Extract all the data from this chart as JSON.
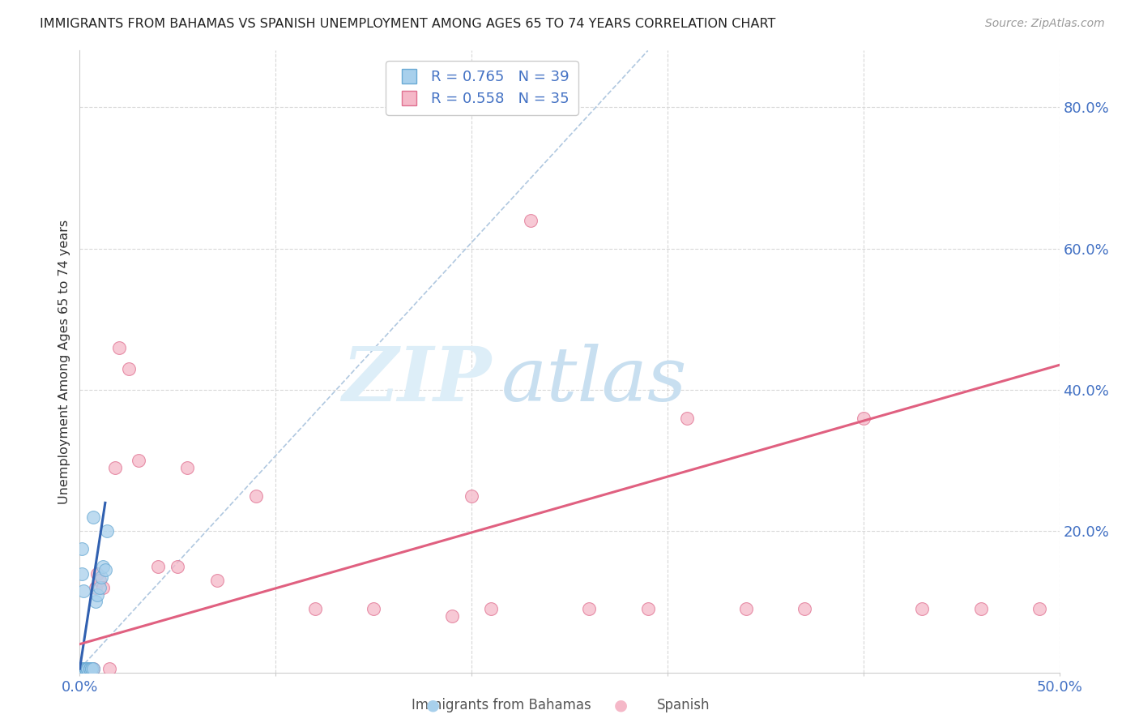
{
  "title": "IMMIGRANTS FROM BAHAMAS VS SPANISH UNEMPLOYMENT AMONG AGES 65 TO 74 YEARS CORRELATION CHART",
  "source": "Source: ZipAtlas.com",
  "ylabel": "Unemployment Among Ages 65 to 74 years",
  "xlim": [
    0,
    0.5
  ],
  "ylim": [
    0,
    0.88
  ],
  "blue_R": 0.765,
  "blue_N": 39,
  "pink_R": 0.558,
  "pink_N": 35,
  "blue_color": "#a8d0ec",
  "blue_edge": "#6aaad4",
  "pink_color": "#f5b8c8",
  "pink_edge": "#e07090",
  "blue_line_color": "#3060b0",
  "pink_line_color": "#e06080",
  "dash_color": "#b0c8e0",
  "watermark_zip": "ZIP",
  "watermark_atlas": "atlas",
  "blue_scatter_x": [
    0.001,
    0.001,
    0.001,
    0.001,
    0.001,
    0.002,
    0.002,
    0.002,
    0.002,
    0.002,
    0.002,
    0.002,
    0.002,
    0.003,
    0.003,
    0.003,
    0.003,
    0.003,
    0.003,
    0.004,
    0.004,
    0.004,
    0.004,
    0.005,
    0.005,
    0.005,
    0.006,
    0.006,
    0.007,
    0.008,
    0.009,
    0.01,
    0.011,
    0.012,
    0.013,
    0.014,
    0.001,
    0.002,
    0.007
  ],
  "blue_scatter_y": [
    0.005,
    0.005,
    0.005,
    0.005,
    0.14,
    0.005,
    0.005,
    0.005,
    0.005,
    0.005,
    0.005,
    0.005,
    0.005,
    0.005,
    0.005,
    0.005,
    0.005,
    0.005,
    0.005,
    0.005,
    0.005,
    0.005,
    0.005,
    0.005,
    0.005,
    0.005,
    0.005,
    0.005,
    0.005,
    0.1,
    0.11,
    0.12,
    0.135,
    0.15,
    0.145,
    0.2,
    0.175,
    0.115,
    0.22
  ],
  "pink_scatter_x": [
    0.002,
    0.003,
    0.004,
    0.005,
    0.006,
    0.007,
    0.008,
    0.009,
    0.01,
    0.012,
    0.015,
    0.018,
    0.02,
    0.025,
    0.03,
    0.04,
    0.055,
    0.07,
    0.09,
    0.12,
    0.15,
    0.19,
    0.2,
    0.21,
    0.23,
    0.26,
    0.29,
    0.31,
    0.34,
    0.37,
    0.4,
    0.43,
    0.46,
    0.49,
    0.05
  ],
  "pink_scatter_y": [
    0.005,
    0.005,
    0.005,
    0.005,
    0.005,
    0.005,
    0.12,
    0.14,
    0.13,
    0.12,
    0.005,
    0.29,
    0.46,
    0.43,
    0.3,
    0.15,
    0.29,
    0.13,
    0.25,
    0.09,
    0.09,
    0.08,
    0.25,
    0.09,
    0.64,
    0.09,
    0.09,
    0.36,
    0.09,
    0.09,
    0.36,
    0.09,
    0.09,
    0.09,
    0.15
  ],
  "blue_regr": [
    0.0,
    0.013,
    0.005,
    0.24
  ],
  "pink_regr": [
    0.0,
    0.5,
    0.04,
    0.435
  ],
  "dash_line": [
    0.0,
    0.29,
    0.005,
    0.88
  ]
}
